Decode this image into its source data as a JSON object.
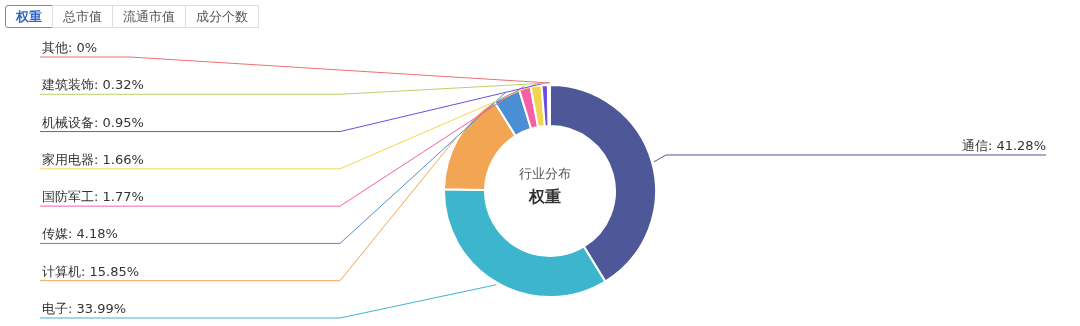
{
  "chart_data": {
    "type": "donut",
    "title": "权重",
    "subtitle": "行业分布",
    "annotations": [
      "权重",
      "总市值",
      "流通市值",
      "成分个数"
    ],
    "categories": [
      "通信: 41.28%",
      "电子: 33.99%",
      "计算机: 15.85%",
      "传媒: 4.18%",
      "国防军工: 1.77%",
      "家用电器: 1.66%",
      "机械设备: 0.95%",
      "建筑装饰: 0.32%",
      "其他: 0%"
    ],
    "values": [
      41.28,
      33.99,
      15.85,
      4.18,
      1.77,
      1.66,
      0.95,
      0.32,
      0
    ],
    "colors": [
      "#4e5899",
      "#3db5cc",
      "#f2a553",
      "#4a8fd4",
      "#f45fa8",
      "#f2d54e",
      "#6a4fe0",
      "#b5d46a",
      "#f07070"
    ]
  }
}
